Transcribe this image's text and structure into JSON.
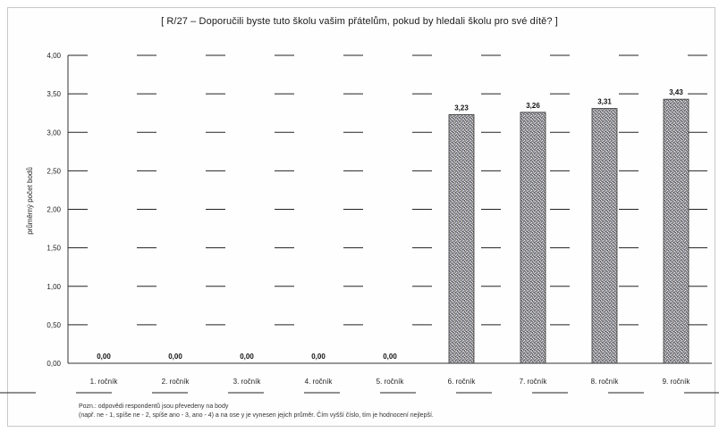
{
  "chart_data": {
    "type": "bar",
    "title": "[ R/27 – Doporučili byste tuto školu vašim přátelům, pokud by hledali školu pro své dítě? ]",
    "xlabel": "",
    "ylabel": "průměrný počet bodů",
    "categories": [
      "1. ročník",
      "2. ročník",
      "3. ročník",
      "4. ročník",
      "5. ročník",
      "6. ročník",
      "7. ročník",
      "8. ročník",
      "9. ročník"
    ],
    "values": [
      0.0,
      0.0,
      0.0,
      0.0,
      0.0,
      3.23,
      3.26,
      3.31,
      3.43
    ],
    "value_labels": [
      "0,00",
      "0,00",
      "0,00",
      "0,00",
      "0,00",
      "3,23",
      "3,26",
      "3,31",
      "3,43"
    ],
    "ylim": [
      0,
      4
    ],
    "yticks": [
      0,
      0.5,
      1,
      1.5,
      2,
      2.5,
      3,
      3.5,
      4
    ],
    "ytick_labels": [
      "0,00",
      "0,50",
      "1,00",
      "1,50",
      "2,00",
      "2,50",
      "3,00",
      "3,50",
      "4,00"
    ],
    "grid": true,
    "bar_color": "#9a9aa0",
    "notes": [
      "Pozn.: odpovědi respondentů jsou převedeny na body",
      "(např. ne - 1, spíše ne - 2, spíše ano - 3, ano - 4) a na ose y je vynesen jejich průměr. Čím vyšší číslo, tím je hodnocení nejlepší."
    ]
  }
}
